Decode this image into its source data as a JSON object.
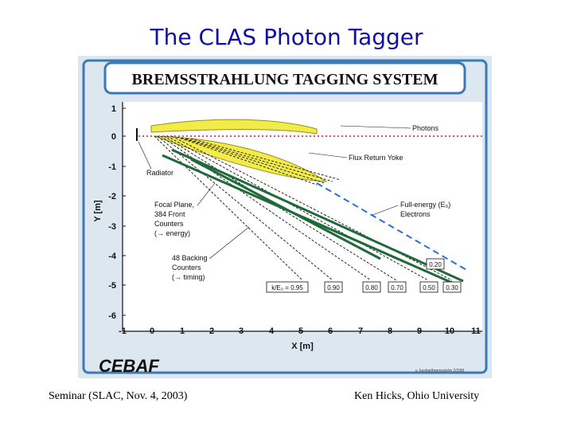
{
  "slide": {
    "title": "The CLAS Photon Tagger",
    "footer_left": "Seminar (SLAC, Nov. 4, 2003)",
    "footer_right": "Ken Hicks, Ohio University"
  },
  "figure": {
    "banner": "BREMSSTRAHLUNG TAGGING SYSTEM",
    "x_axis_label": "X [m]",
    "y_axis_label": "Y [m]",
    "x_ticks": [
      "-1",
      "0",
      "1",
      "2",
      "3",
      "4",
      "5",
      "6",
      "7",
      "8",
      "9",
      "10",
      "11"
    ],
    "y_ticks": [
      "1",
      "0",
      "-1",
      "-2",
      "-3",
      "-4",
      "-5",
      "-6"
    ],
    "labels": {
      "photons": "Photons",
      "flux_yoke": "Flux Return Yoke",
      "radiator": "Radiator",
      "full_energy_1": "Full-energy (E₀)",
      "full_energy_2": "Electrons",
      "focal_1": "Focal Plane,",
      "focal_2": "384 Front",
      "focal_3": "Counters",
      "focal_4": "(→ energy)",
      "backing_1": "48 Backing",
      "backing_2": "Counters",
      "backing_3": "(→ timing)"
    },
    "energy_boxes": {
      "k": "k/E₀ = 0.95",
      "v090a": "0.90",
      "v080": "0.80",
      "v070": "0.70",
      "v050": "0.50",
      "v030": "0.30",
      "v020": "0.20"
    },
    "logo": "CEBAF",
    "credit": "v. bucket/bremsstr/m 2/2/00"
  },
  "colors": {
    "title": "#1010a0",
    "panel": "#dde7f0",
    "border": "#3a7ab8",
    "yoke": "#f2ec4a",
    "electron_green": "#1f6a3a",
    "beam_blue": "#2a6fd6",
    "photon_red": "#d02020"
  }
}
